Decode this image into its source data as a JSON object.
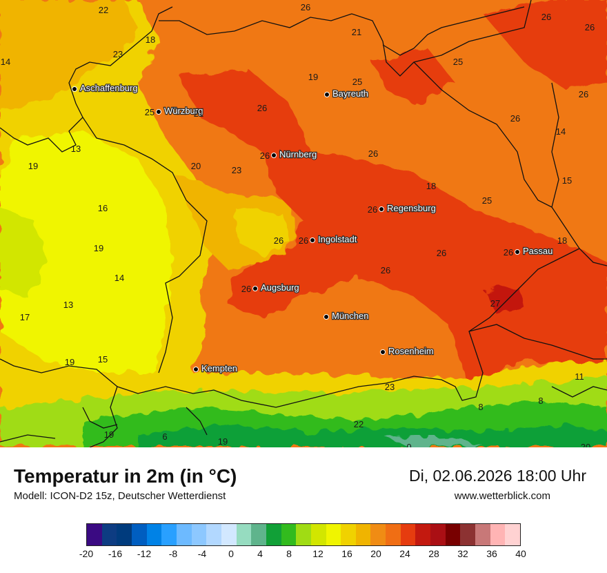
{
  "map": {
    "cities": [
      {
        "name": "Aschaffenburg",
        "value": ""
      },
      {
        "name": "Würzburg",
        "value": "25"
      },
      {
        "name": "Bayreuth",
        "value": ""
      },
      {
        "name": "Nürnberg",
        "value": "26"
      },
      {
        "name": "Regensburg",
        "value": "26"
      },
      {
        "name": "Ingolstadt",
        "value": "26"
      },
      {
        "name": "Passau",
        "value": "26"
      },
      {
        "name": "Augsburg",
        "value": "26"
      },
      {
        "name": "München",
        "value": ""
      },
      {
        "name": "Rosenheim",
        "value": ""
      },
      {
        "name": "Kempten",
        "value": ""
      }
    ],
    "values": [
      "22",
      "26",
      "26",
      "26",
      "21",
      "18",
      "23",
      "14",
      "25",
      "19",
      "25",
      "26",
      "26",
      "21",
      "26",
      "14",
      "13",
      "19",
      "20",
      "23",
      "26",
      "18",
      "25",
      "15",
      "16",
      "26",
      "18",
      "19",
      "26",
      "14",
      "13",
      "17",
      "26",
      "27",
      "19",
      "15",
      "23",
      "11",
      "8",
      "8",
      "22",
      "19",
      "6",
      "19",
      "0",
      "20"
    ]
  },
  "footer": {
    "title": "Temperatur in 2m (in °C)",
    "subtitle": "Modell: ICON-D2 15z, Deutscher Wetterdienst",
    "datetime": "Di, 02.06.2026 18:00 Uhr",
    "website": "www.wetterblick.com"
  },
  "legend": {
    "ticks": [
      "-20",
      "-16",
      "-12",
      "-8",
      "-4",
      "0",
      "4",
      "8",
      "12",
      "16",
      "20",
      "24",
      "28",
      "32",
      "36",
      "40"
    ],
    "colors": [
      "#3a0a82",
      "#0d3c82",
      "#003b7d",
      "#005ec0",
      "#0082e6",
      "#29a0ff",
      "#6dbaff",
      "#8dc8ff",
      "#b2d8ff",
      "#d2e8ff",
      "#96dcc0",
      "#5fb48c",
      "#11a037",
      "#32bb1e",
      "#a0dc14",
      "#d2e600",
      "#f0f500",
      "#f0d200",
      "#f0b400",
      "#f08c14",
      "#f06e14",
      "#e63c0f",
      "#c3190f",
      "#aa0f14",
      "#780000",
      "#8c3232",
      "#c87878",
      "#ffb4b4",
      "#ffd2d2"
    ]
  }
}
